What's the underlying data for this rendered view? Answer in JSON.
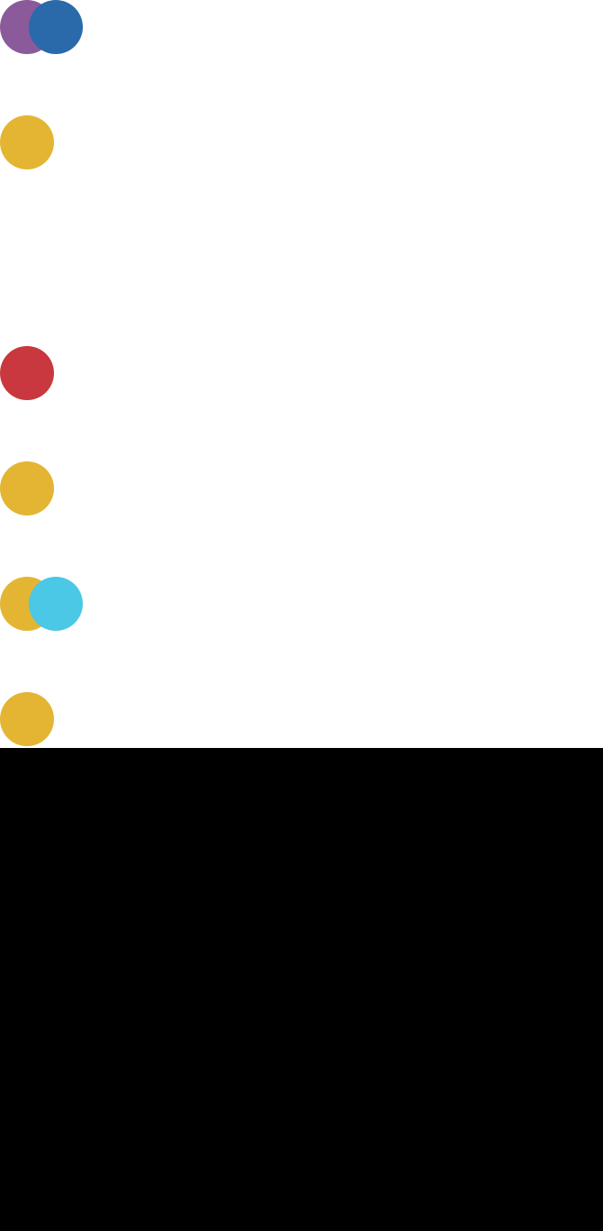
{
  "rows": [
    {
      "primary": "#8a5a9a",
      "secondary": "#2a6aaa"
    },
    {
      "primary": "#e3b532",
      "secondary": null
    },
    {
      "primary": "#c8383e",
      "secondary": null
    },
    {
      "primary": "#e3b532",
      "secondary": null
    },
    {
      "primary": "#e3b532",
      "secondary": "#4ac8e6"
    },
    {
      "primary": "#e3b532",
      "secondary": null
    }
  ]
}
